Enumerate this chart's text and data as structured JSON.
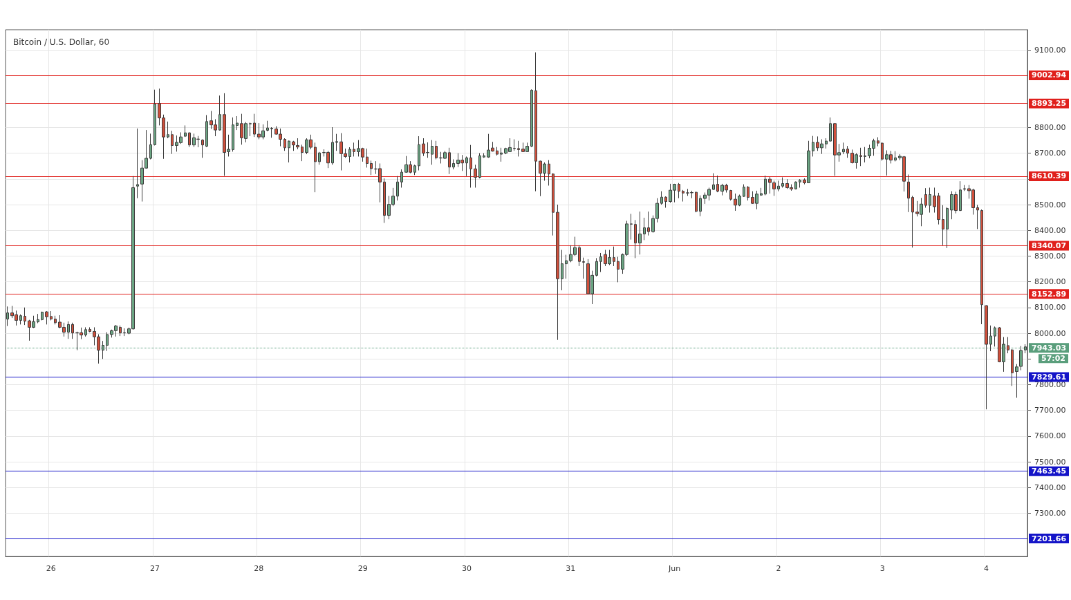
{
  "chart_data": {
    "type": "candlestick",
    "title": "Bitcoin / U.S. Dollar, 60",
    "categories": [
      null,
      null,
      null,
      null,
      null,
      null,
      null,
      null,
      null,
      null,
      "26",
      null,
      null,
      null,
      null,
      null,
      null,
      null,
      null,
      null,
      null,
      null,
      null,
      null,
      null,
      null,
      null,
      null,
      null,
      null,
      null,
      null,
      null,
      null,
      "27",
      null,
      null,
      null,
      null,
      null,
      null,
      null,
      null,
      null,
      null,
      null,
      null,
      null,
      null,
      null,
      null,
      null,
      null,
      null,
      null,
      null,
      null,
      null,
      "28",
      null,
      null,
      null,
      null,
      null,
      null,
      null,
      null,
      null,
      null,
      null,
      null,
      null,
      null,
      null,
      null,
      null,
      null,
      null,
      null,
      null,
      null,
      null,
      "29",
      null,
      null,
      null,
      null,
      null,
      null,
      null,
      null,
      null,
      null,
      null,
      null,
      null,
      null,
      null,
      null,
      null,
      null,
      null,
      null,
      null,
      null,
      null,
      "30",
      null,
      null,
      null,
      null,
      null,
      null,
      null,
      null,
      null,
      null,
      null,
      null,
      null,
      null,
      null,
      null,
      null,
      null,
      null,
      null,
      null,
      null,
      null,
      "31",
      null,
      null,
      null,
      null,
      null,
      null,
      null,
      null,
      null,
      null,
      null,
      null,
      null,
      null,
      null,
      null,
      null,
      null,
      null,
      null,
      null,
      null,
      null,
      "Jun",
      null,
      null,
      null,
      null,
      null,
      null,
      null,
      null,
      null,
      null,
      null,
      null,
      null,
      null,
      null,
      null,
      null,
      null,
      null,
      null,
      null,
      null,
      null,
      "2",
      null,
      null,
      null,
      null,
      null,
      null,
      null,
      null,
      null,
      null,
      null,
      null,
      null,
      null,
      null,
      null,
      null,
      null,
      null,
      null,
      null,
      null,
      null,
      "3",
      null,
      null,
      null,
      null,
      null,
      null,
      null,
      null,
      null,
      null,
      null,
      null,
      null,
      null,
      null,
      null,
      null,
      null,
      null,
      null,
      null,
      null,
      null,
      "4",
      null,
      null,
      null,
      null,
      null,
      null,
      null,
      null,
      null
    ],
    "ohlc": [
      [
        8055,
        8104,
        8028,
        8079
      ],
      [
        8079,
        8106,
        8059,
        8068
      ],
      [
        8072,
        8088,
        8030,
        8050
      ],
      [
        8050,
        8073,
        8034,
        8068
      ],
      [
        8066,
        8100,
        8032,
        8047
      ],
      [
        8048,
        8052,
        7971,
        8023
      ],
      [
        8023,
        8068,
        8020,
        8045
      ],
      [
        8044,
        8075,
        8039,
        8053
      ],
      [
        8053,
        8084,
        8050,
        8082
      ],
      [
        8083,
        8086,
        8034,
        8064
      ],
      [
        8065,
        8086,
        8050,
        8055
      ],
      [
        8055,
        8068,
        8034,
        8041
      ],
      [
        8043,
        8070,
        8019,
        8023
      ],
      [
        8023,
        8041,
        7987,
        8004
      ],
      [
        8004,
        8046,
        7978,
        8034
      ],
      [
        8034,
        8041,
        7978,
        8001
      ],
      [
        8001,
        8006,
        7934,
        8002
      ],
      [
        8002,
        8022,
        7977,
        7993
      ],
      [
        7993,
        8023,
        7987,
        8014
      ],
      [
        8015,
        8023,
        8004,
        8007
      ],
      [
        8007,
        8023,
        7953,
        7986
      ],
      [
        7986,
        7996,
        7882,
        7934
      ],
      [
        7934,
        7970,
        7900,
        7953
      ],
      [
        7953,
        8004,
        7931,
        7995
      ],
      [
        7995,
        8014,
        7983,
        8010
      ],
      [
        8010,
        8032,
        7987,
        8028
      ],
      [
        8023,
        8030,
        7989,
        8001
      ],
      [
        8001,
        8019,
        7989,
        8002
      ],
      [
        8000,
        8022,
        7996,
        8017
      ],
      [
        8017,
        8611,
        8014,
        8566
      ],
      [
        8572,
        8796,
        8525,
        8578
      ],
      [
        8580,
        8673,
        8512,
        8642
      ],
      [
        8642,
        8790,
        8640,
        8680
      ],
      [
        8680,
        8776,
        8676,
        8733
      ],
      [
        8733,
        8947,
        8730,
        8891
      ],
      [
        8893,
        8951,
        8808,
        8837
      ],
      [
        8837,
        8850,
        8678,
        8763
      ],
      [
        8763,
        8823,
        8758,
        8772
      ],
      [
        8772,
        8787,
        8697,
        8730
      ],
      [
        8730,
        8769,
        8706,
        8742
      ],
      [
        8741,
        8781,
        8736,
        8763
      ],
      [
        8766,
        8808,
        8763,
        8779
      ],
      [
        8779,
        8781,
        8724,
        8732
      ],
      [
        8732,
        8776,
        8724,
        8760
      ],
      [
        8754,
        8767,
        8723,
        8755
      ],
      [
        8751,
        8754,
        8682,
        8732
      ],
      [
        8727,
        8848,
        8724,
        8823
      ],
      [
        8826,
        8864,
        8794,
        8810
      ],
      [
        8810,
        8832,
        8766,
        8790
      ],
      [
        8790,
        8924,
        8788,
        8850
      ],
      [
        8850,
        8933,
        8612,
        8703
      ],
      [
        8706,
        8772,
        8687,
        8715
      ],
      [
        8714,
        8839,
        8706,
        8810
      ],
      [
        8808,
        8844,
        8790,
        8817
      ],
      [
        8815,
        8853,
        8733,
        8760
      ],
      [
        8757,
        8821,
        8742,
        8815
      ],
      [
        8814,
        8819,
        8766,
        8815
      ],
      [
        8817,
        8853,
        8763,
        8774
      ],
      [
        8774,
        8817,
        8754,
        8763
      ],
      [
        8763,
        8812,
        8754,
        8787
      ],
      [
        8789,
        8826,
        8785,
        8798
      ],
      [
        8795,
        8801,
        8760,
        8797
      ],
      [
        8794,
        8805,
        8772,
        8774
      ],
      [
        8774,
        8796,
        8727,
        8754
      ],
      [
        8754,
        8758,
        8709,
        8721
      ],
      [
        8721,
        8749,
        8664,
        8747
      ],
      [
        8744,
        8748,
        8709,
        8732
      ],
      [
        8730,
        8758,
        8715,
        8724
      ],
      [
        8724,
        8733,
        8669,
        8703
      ],
      [
        8703,
        8758,
        8696,
        8752
      ],
      [
        8752,
        8772,
        8715,
        8723
      ],
      [
        8723,
        8741,
        8548,
        8667
      ],
      [
        8667,
        8705,
        8655,
        8701
      ],
      [
        8702,
        8715,
        8687,
        8703
      ],
      [
        8703,
        8709,
        8642,
        8662
      ],
      [
        8662,
        8801,
        8655,
        8742
      ],
      [
        8742,
        8775,
        8709,
        8745
      ],
      [
        8744,
        8778,
        8633,
        8698
      ],
      [
        8698,
        8718,
        8682,
        8687
      ],
      [
        8687,
        8723,
        8664,
        8715
      ],
      [
        8715,
        8741,
        8687,
        8706
      ],
      [
        8706,
        8751,
        8687,
        8718
      ],
      [
        8718,
        8721,
        8667,
        8685
      ],
      [
        8685,
        8718,
        8644,
        8660
      ],
      [
        8660,
        8671,
        8615,
        8640
      ],
      [
        8639,
        8669,
        8619,
        8638
      ],
      [
        8640,
        8660,
        8509,
        8588
      ],
      [
        8588,
        8602,
        8429,
        8458
      ],
      [
        8458,
        8534,
        8443,
        8501
      ],
      [
        8501,
        8565,
        8494,
        8533
      ],
      [
        8533,
        8611,
        8516,
        8588
      ],
      [
        8588,
        8637,
        8566,
        8626
      ],
      [
        8626,
        8689,
        8624,
        8655
      ],
      [
        8655,
        8669,
        8622,
        8626
      ],
      [
        8626,
        8655,
        8615,
        8651
      ],
      [
        8651,
        8766,
        8633,
        8733
      ],
      [
        8736,
        8758,
        8689,
        8700
      ],
      [
        8702,
        8742,
        8682,
        8703
      ],
      [
        8696,
        8751,
        8655,
        8727
      ],
      [
        8727,
        8748,
        8676,
        8682
      ],
      [
        8682,
        8705,
        8660,
        8681
      ],
      [
        8680,
        8709,
        8678,
        8702
      ],
      [
        8702,
        8721,
        8619,
        8646
      ],
      [
        8646,
        8676,
        8637,
        8660
      ],
      [
        8660,
        8700,
        8646,
        8673
      ],
      [
        8673,
        8693,
        8631,
        8662
      ],
      [
        8662,
        8687,
        8611,
        8682
      ],
      [
        8682,
        8732,
        8566,
        8639
      ],
      [
        8639,
        8655,
        8566,
        8606
      ],
      [
        8606,
        8700,
        8602,
        8690
      ],
      [
        8685,
        8700,
        8682,
        8690
      ],
      [
        8685,
        8775,
        8682,
        8712
      ],
      [
        8720,
        8744,
        8706,
        8708
      ],
      [
        8709,
        8724,
        8691,
        8696
      ],
      [
        8696,
        8721,
        8667,
        8701
      ],
      [
        8700,
        8721,
        8696,
        8718
      ],
      [
        8706,
        8758,
        8705,
        8722
      ],
      [
        8719,
        8754,
        8709,
        8718
      ],
      [
        8718,
        8748,
        8687,
        8714
      ],
      [
        8716,
        8741,
        8705,
        8706
      ],
      [
        8706,
        8741,
        8705,
        8727
      ],
      [
        8727,
        8948,
        8724,
        8945
      ],
      [
        8943,
        9092,
        8552,
        8669
      ],
      [
        8669,
        8671,
        8533,
        8622
      ],
      [
        8622,
        8664,
        8593,
        8658
      ],
      [
        8658,
        8673,
        8574,
        8619
      ],
      [
        8619,
        8622,
        8380,
        8470
      ],
      [
        8470,
        8500,
        7974,
        8212
      ],
      [
        8212,
        8324,
        8167,
        8270
      ],
      [
        8270,
        8305,
        8212,
        8282
      ],
      [
        8282,
        8342,
        8276,
        8306
      ],
      [
        8306,
        8375,
        8301,
        8333
      ],
      [
        8333,
        8342,
        8261,
        8279
      ],
      [
        8278,
        8294,
        8212,
        8276
      ],
      [
        8270,
        8288,
        8151,
        8153
      ],
      [
        8153,
        8243,
        8113,
        8225
      ],
      [
        8225,
        8292,
        8221,
        8279
      ],
      [
        8279,
        8312,
        8238,
        8297
      ],
      [
        8306,
        8324,
        8261,
        8270
      ],
      [
        8270,
        8324,
        8265,
        8294
      ],
      [
        8294,
        8337,
        8261,
        8279
      ],
      [
        8279,
        8297,
        8198,
        8249
      ],
      [
        8249,
        8310,
        8231,
        8306
      ],
      [
        8306,
        8437,
        8301,
        8425
      ],
      [
        8425,
        8464,
        8364,
        8424
      ],
      [
        8423,
        8440,
        8292,
        8351
      ],
      [
        8351,
        8473,
        8306,
        8386
      ],
      [
        8386,
        8449,
        8362,
        8410
      ],
      [
        8410,
        8473,
        8380,
        8395
      ],
      [
        8395,
        8458,
        8391,
        8446
      ],
      [
        8446,
        8525,
        8431,
        8505
      ],
      [
        8505,
        8552,
        8500,
        8529
      ],
      [
        8529,
        8532,
        8488,
        8512
      ],
      [
        8512,
        8581,
        8507,
        8556
      ],
      [
        8556,
        8581,
        8509,
        8579
      ],
      [
        8579,
        8584,
        8525,
        8552
      ],
      [
        8552,
        8557,
        8512,
        8545
      ],
      [
        8545,
        8561,
        8534,
        8546
      ],
      [
        8546,
        8554,
        8525,
        8547
      ],
      [
        8548,
        8550,
        8470,
        8474
      ],
      [
        8474,
        8536,
        8455,
        8524
      ],
      [
        8524,
        8547,
        8503,
        8537
      ],
      [
        8537,
        8566,
        8516,
        8559
      ],
      [
        8559,
        8622,
        8557,
        8577
      ],
      [
        8579,
        8613,
        8548,
        8552
      ],
      [
        8552,
        8581,
        8536,
        8575
      ],
      [
        8575,
        8581,
        8547,
        8557
      ],
      [
        8555,
        8557,
        8516,
        8521
      ],
      [
        8521,
        8543,
        8476,
        8498
      ],
      [
        8498,
        8539,
        8494,
        8533
      ],
      [
        8532,
        8579,
        8530,
        8568
      ],
      [
        8568,
        8572,
        8516,
        8528
      ],
      [
        8528,
        8552,
        8503,
        8505
      ],
      [
        8505,
        8554,
        8482,
        8541
      ],
      [
        8537,
        8565,
        8534,
        8543
      ],
      [
        8541,
        8613,
        8536,
        8599
      ],
      [
        8599,
        8608,
        8543,
        8586
      ],
      [
        8585,
        8593,
        8534,
        8561
      ],
      [
        8561,
        8593,
        8552,
        8572
      ],
      [
        8572,
        8606,
        8566,
        8582
      ],
      [
        8582,
        8599,
        8561,
        8566
      ],
      [
        8566,
        8579,
        8554,
        8561
      ],
      [
        8561,
        8590,
        8559,
        8588
      ],
      [
        8588,
        8599,
        8566,
        8595
      ],
      [
        8596,
        8602,
        8579,
        8585
      ],
      [
        8585,
        8748,
        8584,
        8709
      ],
      [
        8709,
        8767,
        8687,
        8742
      ],
      [
        8742,
        8765,
        8709,
        8721
      ],
      [
        8721,
        8754,
        8697,
        8736
      ],
      [
        8736,
        8758,
        8718,
        8747
      ],
      [
        8747,
        8839,
        8745,
        8815
      ],
      [
        8815,
        8817,
        8612,
        8693
      ],
      [
        8693,
        8736,
        8667,
        8702
      ],
      [
        8705,
        8741,
        8696,
        8715
      ],
      [
        8716,
        8728,
        8682,
        8700
      ],
      [
        8700,
        8714,
        8660,
        8663
      ],
      [
        8663,
        8700,
        8640,
        8694
      ],
      [
        8691,
        8721,
        8650,
        8687
      ],
      [
        8687,
        8724,
        8664,
        8690
      ],
      [
        8690,
        8733,
        8680,
        8719
      ],
      [
        8719,
        8756,
        8690,
        8748
      ],
      [
        8748,
        8762,
        8727,
        8739
      ],
      [
        8739,
        8742,
        8671,
        8677
      ],
      [
        8677,
        8711,
        8613,
        8694
      ],
      [
        8694,
        8709,
        8660,
        8673
      ],
      [
        8673,
        8708,
        8668,
        8682
      ],
      [
        8682,
        8696,
        8673,
        8688
      ],
      [
        8686,
        8689,
        8551,
        8591
      ],
      [
        8588,
        8617,
        8471,
        8525
      ],
      [
        8528,
        8534,
        8333,
        8471
      ],
      [
        8471,
        8514,
        8454,
        8465
      ],
      [
        8462,
        8526,
        8416,
        8502
      ],
      [
        8539,
        8564,
        8488,
        8497
      ],
      [
        8497,
        8566,
        8469,
        8539
      ],
      [
        8534,
        8566,
        8469,
        8492
      ],
      [
        8534,
        8546,
        8423,
        8442
      ],
      [
        8442,
        8498,
        8342,
        8405
      ],
      [
        8405,
        8490,
        8331,
        8485
      ],
      [
        8479,
        8552,
        8443,
        8539
      ],
      [
        8539,
        8550,
        8466,
        8477
      ],
      [
        8477,
        8591,
        8475,
        8557
      ],
      [
        8560,
        8576,
        8553,
        8562
      ],
      [
        8562,
        8576,
        8523,
        8554
      ],
      [
        8557,
        8562,
        8461,
        8488
      ],
      [
        8488,
        8499,
        8405,
        8479
      ],
      [
        8477,
        8481,
        8035,
        8111
      ],
      [
        8107,
        8109,
        7704,
        7957
      ],
      [
        7957,
        8030,
        7930,
        7989
      ],
      [
        7989,
        8026,
        7948,
        8021
      ],
      [
        8021,
        8024,
        7887,
        7889
      ],
      [
        7889,
        7985,
        7850,
        7957
      ],
      [
        7952,
        7985,
        7922,
        7935
      ],
      [
        7935,
        7938,
        7795,
        7846
      ],
      [
        7851,
        7880,
        7749,
        7869
      ],
      [
        7871,
        7950,
        7856,
        7933
      ],
      [
        7935,
        7957,
        7922,
        7947
      ]
    ],
    "colors": [
      "#6ba583",
      "#d0503c",
      "#d0503c",
      "#6ba583",
      "#d0503c",
      "#d0503c",
      "#6ba583",
      "#6ba583",
      "#6ba583",
      "#d0503c",
      "#d0503c",
      "#d0503c",
      "#d0503c",
      "#d0503c",
      "#6ba583",
      "#d0503c",
      "#6ba583",
      "#d0503c",
      "#6ba583",
      "#d0503c",
      "#d0503c",
      "#d0503c",
      "#6ba583",
      "#6ba583",
      "#6ba583",
      "#6ba583",
      "#d0503c",
      "#6ba583",
      "#6ba583",
      "#6ba583",
      "#6ba583",
      "#6ba583",
      "#6ba583",
      "#6ba583",
      "#6ba583",
      "#d0503c",
      "#d0503c",
      "#6ba583",
      "#d0503c",
      "#6ba583",
      "#6ba583",
      "#6ba583",
      "#d0503c",
      "#6ba583",
      "#6ba583",
      "#d0503c",
      "#6ba583",
      "#d0503c",
      "#d0503c",
      "#6ba583",
      "#d0503c",
      "#6ba583",
      "#6ba583",
      "#6ba583",
      "#d0503c",
      "#6ba583",
      "#6ba583",
      "#d0503c",
      "#d0503c",
      "#6ba583",
      "#6ba583",
      "#6ba583",
      "#d0503c",
      "#d0503c",
      "#d0503c",
      "#6ba583",
      "#d0503c",
      "#d0503c",
      "#d0503c",
      "#6ba583",
      "#d0503c",
      "#d0503c",
      "#6ba583",
      "#6ba583",
      "#d0503c",
      "#6ba583",
      "#6ba583",
      "#d0503c",
      "#d0503c",
      "#6ba583",
      "#d0503c",
      "#6ba583",
      "#d0503c",
      "#d0503c",
      "#d0503c",
      "#d0503c",
      "#d0503c",
      "#d0503c",
      "#6ba583",
      "#6ba583",
      "#6ba583",
      "#6ba583",
      "#6ba583",
      "#d0503c",
      "#6ba583",
      "#6ba583",
      "#d0503c",
      "#6ba583",
      "#6ba583",
      "#d0503c",
      "#d0503c",
      "#6ba583",
      "#d0503c",
      "#6ba583",
      "#6ba583",
      "#d0503c",
      "#6ba583",
      "#d0503c",
      "#d0503c",
      "#6ba583",
      "#6ba583",
      "#6ba583",
      "#d0503c",
      "#d0503c",
      "#6ba583",
      "#6ba583",
      "#6ba583",
      "#d0503c",
      "#d0503c",
      "#d0503c",
      "#6ba583",
      "#6ba583",
      "#d0503c",
      "#d0503c",
      "#6ba583",
      "#d0503c",
      "#d0503c",
      "#d0503c",
      "#6ba583",
      "#6ba583",
      "#6ba583",
      "#6ba583",
      "#d0503c",
      "#d0503c",
      "#d0503c",
      "#6ba583",
      "#6ba583",
      "#6ba583",
      "#d0503c",
      "#6ba583",
      "#d0503c",
      "#d0503c",
      "#6ba583",
      "#6ba583",
      "#d0503c",
      "#d0503c",
      "#6ba583",
      "#6ba583",
      "#d0503c",
      "#6ba583",
      "#6ba583",
      "#6ba583",
      "#d0503c",
      "#6ba583",
      "#6ba583",
      "#d0503c",
      "#d0503c",
      "#6ba583",
      "#6ba583",
      "#d0503c",
      "#6ba583",
      "#6ba583",
      "#6ba583",
      "#6ba583",
      "#d0503c",
      "#6ba583",
      "#d0503c",
      "#d0503c",
      "#d0503c",
      "#6ba583",
      "#6ba583",
      "#d0503c",
      "#d0503c",
      "#6ba583",
      "#6ba583",
      "#6ba583",
      "#d0503c",
      "#d0503c",
      "#6ba583",
      "#6ba583",
      "#d0503c",
      "#d0503c",
      "#6ba583",
      "#6ba583",
      "#d0503c",
      "#6ba583",
      "#6ba583",
      "#d0503c",
      "#6ba583",
      "#6ba583",
      "#6ba583",
      "#d0503c",
      "#6ba583",
      "#6ba583",
      "#d0503c",
      "#d0503c",
      "#6ba583",
      "#d0503c",
      "#6ba583",
      "#6ba583",
      "#6ba583",
      "#d0503c",
      "#d0503c",
      "#6ba583",
      "#d0503c",
      "#6ba583",
      "#6ba583",
      "#d0503c",
      "#d0503c",
      "#d0503c",
      "#d0503c",
      "#6ba583",
      "#d0503c",
      "#6ba583",
      "#d0503c",
      "#d0503c",
      "#d0503c",
      "#6ba583",
      "#6ba583",
      "#d0503c",
      "#6ba583",
      "#6ba583",
      "#d0503c",
      "#d0503c",
      "#d0503c",
      "#d0503c",
      "#d0503c",
      "#6ba583",
      "#6ba583",
      "#d0503c",
      "#6ba583",
      "#d0503c",
      "#d0503c",
      "#6ba583",
      "#6ba583",
      "#6ba583"
    ],
    "ylim": [
      7132,
      9180
    ],
    "yticks": [
      {
        "value": 7300,
        "label": "7300.00"
      },
      {
        "value": 7400,
        "label": "7400.00"
      },
      {
        "value": 7500,
        "label": "7500.00"
      },
      {
        "value": 7600,
        "label": "7600.00"
      },
      {
        "value": 7700,
        "label": "7700.00"
      },
      {
        "value": 7800,
        "label": "7800.00"
      },
      {
        "value": 7900,
        "label": null
      },
      {
        "value": 8000,
        "label": "8000.00"
      },
      {
        "value": 8100,
        "label": "8100.00"
      },
      {
        "value": 8200,
        "label": "8200.00"
      },
      {
        "value": 8300,
        "label": "8300.00"
      },
      {
        "value": 8400,
        "label": "8400.00"
      },
      {
        "value": 8500,
        "label": "8500.00"
      },
      {
        "value": 8600,
        "label": null
      },
      {
        "value": 8700,
        "label": "8700.00"
      },
      {
        "value": 8800,
        "label": "8800.00"
      },
      {
        "value": 9100,
        "label": "9100.00"
      }
    ],
    "ref_lines": [
      {
        "axis": "y",
        "value": 9002.94,
        "label": "9002.94",
        "color": "#e0201c"
      },
      {
        "axis": "y",
        "value": 8893.25,
        "label": "8893.25",
        "color": "#e0201c"
      },
      {
        "axis": "y",
        "value": 8610.39,
        "label": "8610.39",
        "color": "#e0201c"
      },
      {
        "axis": "y",
        "value": 8340.07,
        "label": "8340.07",
        "color": "#e0201c"
      },
      {
        "axis": "y",
        "value": 8152.89,
        "label": "8152.89",
        "color": "#e0201c"
      },
      {
        "axis": "y",
        "value": 7943.03,
        "label": "7943.03",
        "color": "#5a9e7c",
        "line_style": "dotted"
      },
      {
        "axis": "y",
        "value": 7829.61,
        "label": "7829.61",
        "color": "#1414c8"
      },
      {
        "axis": "y",
        "value": 7463.45,
        "label": "7463.45",
        "color": "#1414c8"
      },
      {
        "axis": "y",
        "value": 7201.66,
        "label": "7201.66",
        "color": "#1414c8"
      }
    ],
    "annotations": [
      "57:02"
    ],
    "grid": true
  }
}
